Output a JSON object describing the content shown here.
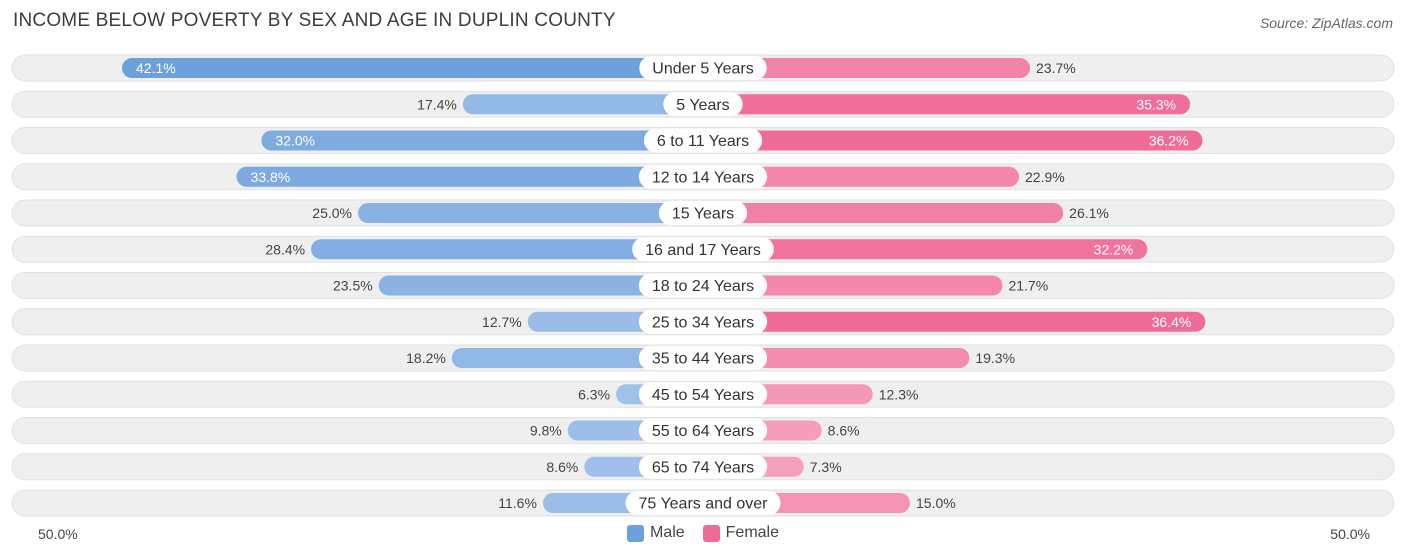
{
  "header": {
    "title": "INCOME BELOW POVERTY BY SEX AND AGE IN DUPLIN COUNTY",
    "source": "Source: ZipAtlas.com"
  },
  "colors": {
    "male": "#6ea0dc",
    "male_light": "#a6c6ec",
    "female": "#f06c98",
    "female_light": "#f6a8c2",
    "track": "#efefef"
  },
  "chart_data": {
    "type": "bar",
    "orientation": "horizontal-diverging",
    "title": "INCOME BELOW POVERTY BY SEX AND AGE IN DUPLIN COUNTY",
    "categories": [
      "Under 5 Years",
      "5 Years",
      "6 to 11 Years",
      "12 to 14 Years",
      "15 Years",
      "16 and 17 Years",
      "18 to 24 Years",
      "25 to 34 Years",
      "35 to 44 Years",
      "45 to 54 Years",
      "55 to 64 Years",
      "65 to 74 Years",
      "75 Years and over"
    ],
    "series": [
      {
        "name": "Male",
        "values": [
          42.1,
          17.4,
          32.0,
          33.8,
          25.0,
          28.4,
          23.5,
          12.7,
          18.2,
          6.3,
          9.8,
          8.6,
          11.6
        ]
      },
      {
        "name": "Female",
        "values": [
          23.7,
          35.3,
          36.2,
          22.9,
          26.1,
          32.2,
          21.7,
          36.4,
          19.3,
          12.3,
          8.6,
          7.3,
          15.0
        ]
      }
    ],
    "value_labels": {
      "male": [
        "42.1%",
        "17.4%",
        "32.0%",
        "33.8%",
        "25.0%",
        "28.4%",
        "23.5%",
        "12.7%",
        "18.2%",
        "6.3%",
        "9.8%",
        "8.6%",
        "11.6%"
      ],
      "female": [
        "23.7%",
        "35.3%",
        "36.2%",
        "22.9%",
        "26.1%",
        "32.2%",
        "21.7%",
        "36.4%",
        "19.3%",
        "12.3%",
        "8.6%",
        "7.3%",
        "15.0%"
      ]
    },
    "xlim": [
      -50,
      50
    ],
    "axis_left_label": "50.0%",
    "axis_right_label": "50.0%",
    "legend": [
      "Male",
      "Female"
    ],
    "legend_position": "bottom-center"
  }
}
